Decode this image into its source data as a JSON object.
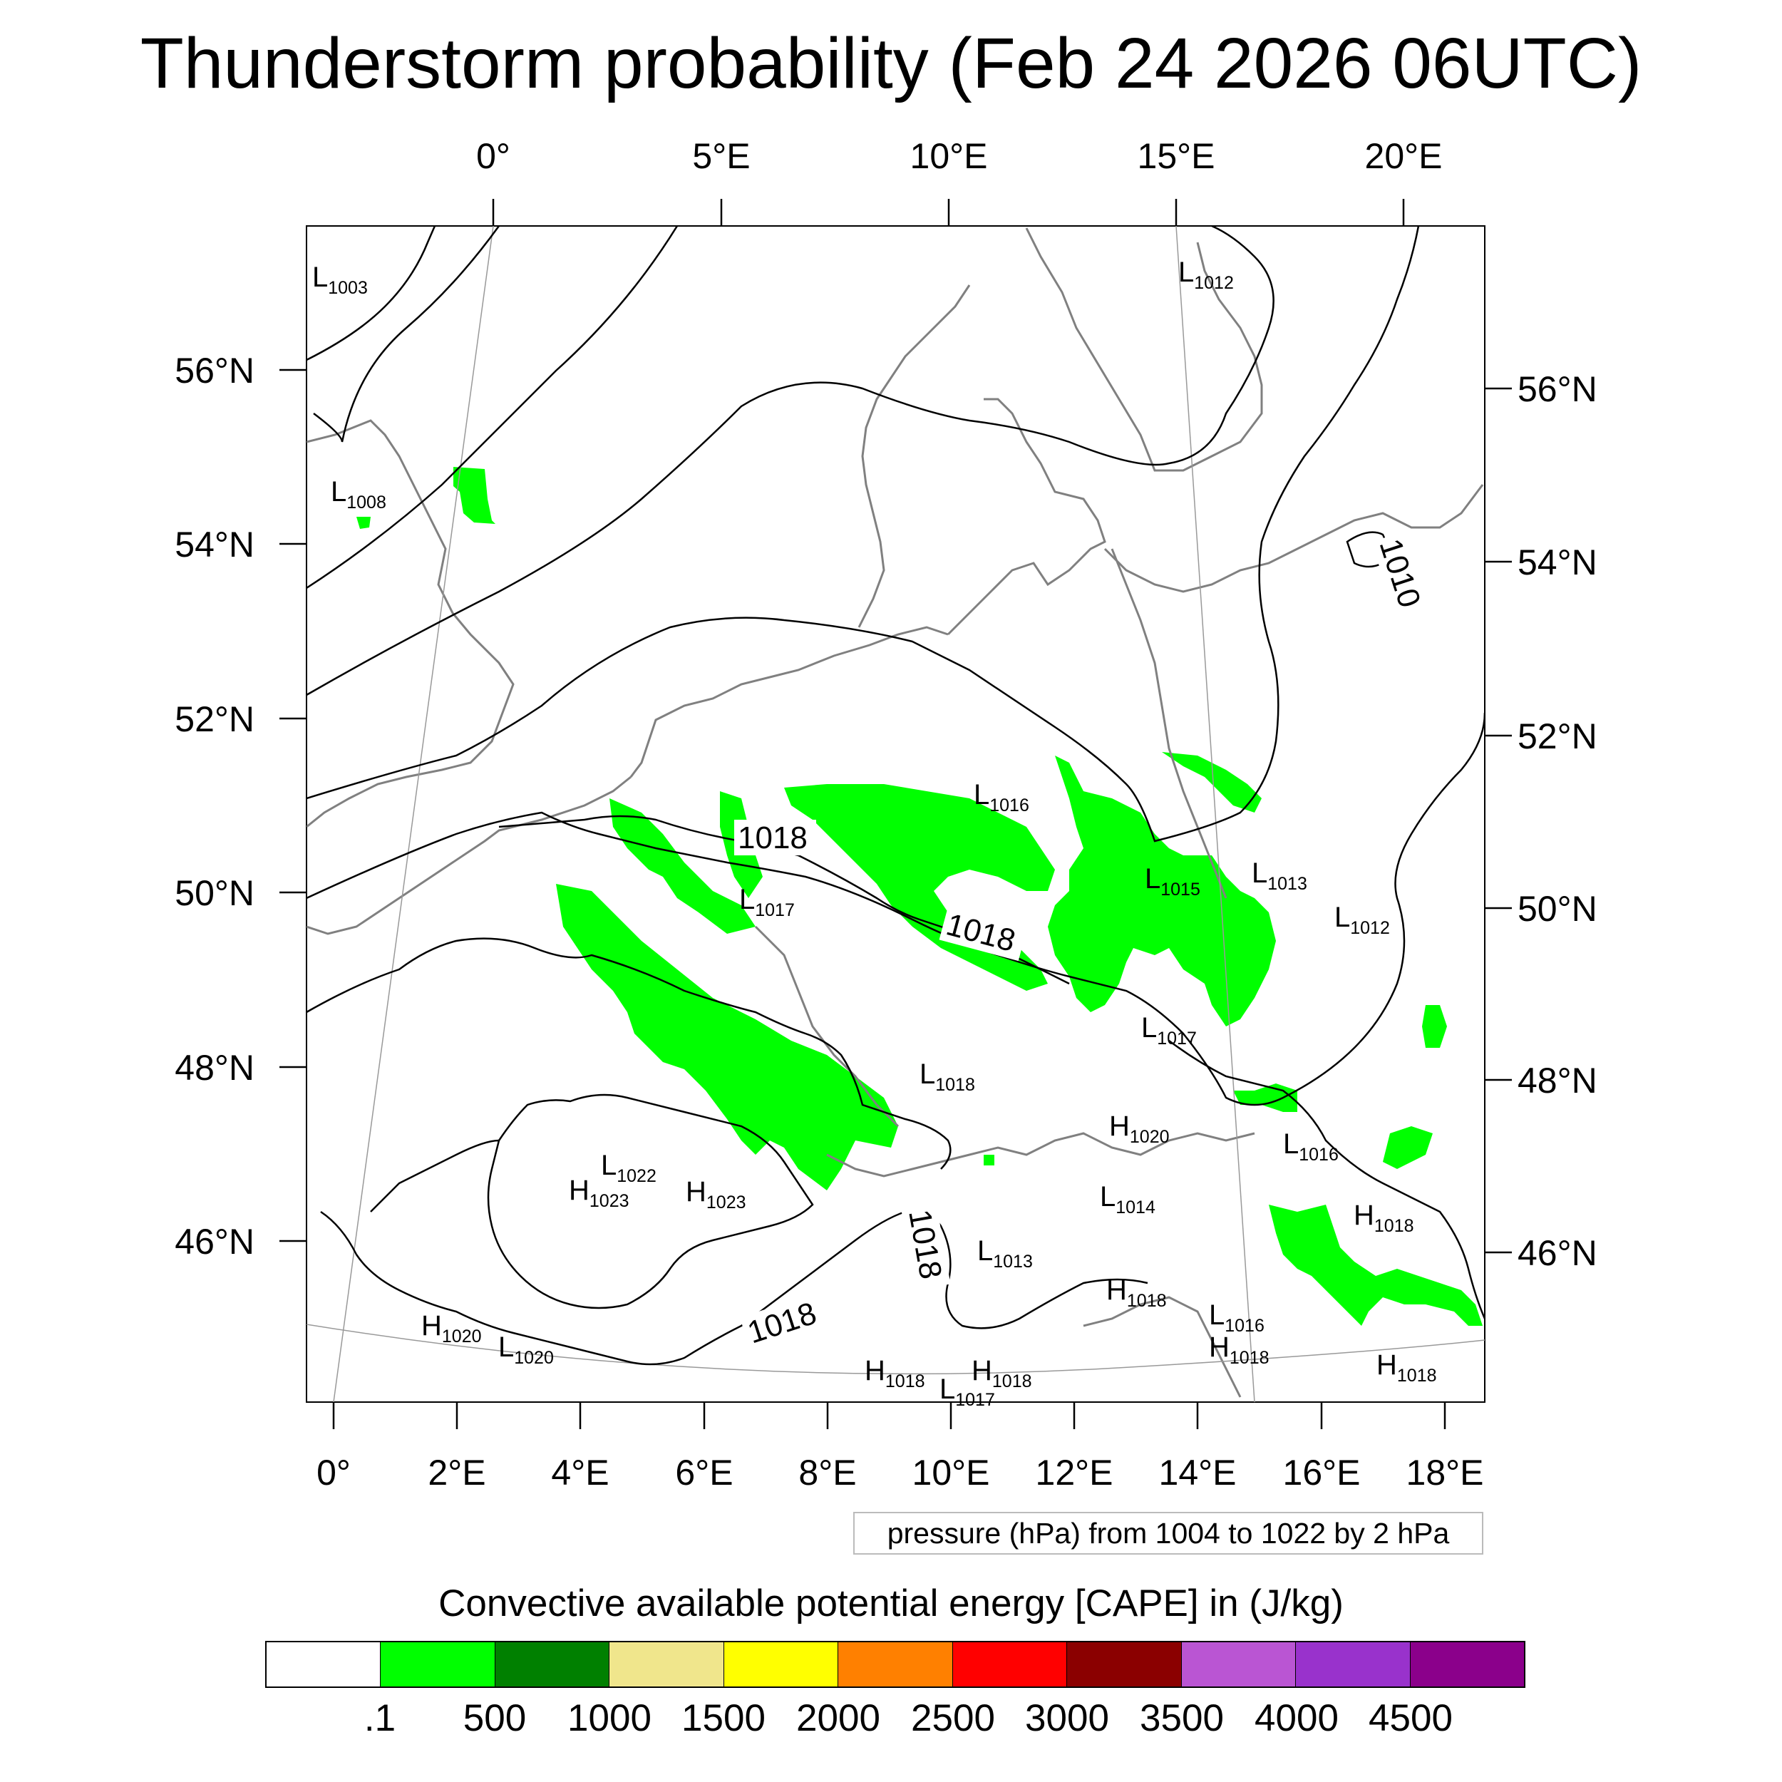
{
  "title": "Thunderstorm probability (Feb 24 2026 06UTC)",
  "top_axis_labels": [
    "0°",
    "5°E",
    "10°E",
    "15°E",
    "20°E"
  ],
  "bottom_axis_labels": [
    "0°",
    "2°E",
    "4°E",
    "6°E",
    "8°E",
    "10°E",
    "12°E",
    "14°E",
    "16°E",
    "18°E"
  ],
  "left_axis_labels": [
    "56°N",
    "54°N",
    "52°N",
    "50°N",
    "48°N",
    "46°N"
  ],
  "right_axis_labels": [
    "56°N",
    "54°N",
    "52°N",
    "50°N",
    "48°N",
    "46°N"
  ],
  "pressure_centers": [
    {
      "type": "L",
      "value": "1003"
    },
    {
      "type": "L",
      "value": "1012"
    },
    {
      "type": "L",
      "value": "1008"
    },
    {
      "type": "L",
      "value": "1016"
    },
    {
      "type": "L",
      "value": "1015"
    },
    {
      "type": "L",
      "value": "1013"
    },
    {
      "type": "L",
      "value": "1017"
    },
    {
      "type": "L",
      "value": "1012"
    },
    {
      "type": "L",
      "value": "1017"
    },
    {
      "type": "L",
      "value": "1018"
    },
    {
      "type": "H",
      "value": "1020"
    },
    {
      "type": "L",
      "value": "1016"
    },
    {
      "type": "L",
      "value": "1022"
    },
    {
      "type": "H",
      "value": "1023"
    },
    {
      "type": "H",
      "value": "1023"
    },
    {
      "type": "L",
      "value": "1014"
    },
    {
      "type": "H",
      "value": "1018"
    },
    {
      "type": "L",
      "value": "1013"
    },
    {
      "type": "H",
      "value": "1018"
    },
    {
      "type": "L",
      "value": "1016"
    },
    {
      "type": "H",
      "value": "1018"
    },
    {
      "type": "H",
      "value": "1020"
    },
    {
      "type": "L",
      "value": "1020"
    },
    {
      "type": "H",
      "value": "1018"
    },
    {
      "type": "H",
      "value": "1018"
    },
    {
      "type": "L",
      "value": "1017"
    },
    {
      "type": "H",
      "value": "1018"
    }
  ],
  "contour_labels": [
    "1018",
    "1018",
    "1010",
    "1018",
    "1018"
  ],
  "legend_note": "pressure (hPa) from 1004 to 1022 by 2 hPa",
  "colorbar_title": "Convective available potential energy [CAPE] in (J/kg)",
  "colorbar_colors": [
    "#ffffff",
    "#00ff00",
    "#008000",
    "#f0e68c",
    "#ffff00",
    "#ff8000",
    "#ff0000",
    "#8b0000",
    "#ba55d3",
    "#9932cc",
    "#8b008b"
  ],
  "colorbar_ticks": [
    ".1",
    "500",
    "1000",
    "1500",
    "2000",
    "2500",
    "3000",
    "3500",
    "4000",
    "4500"
  ],
  "cape_color": "#00ff00"
}
